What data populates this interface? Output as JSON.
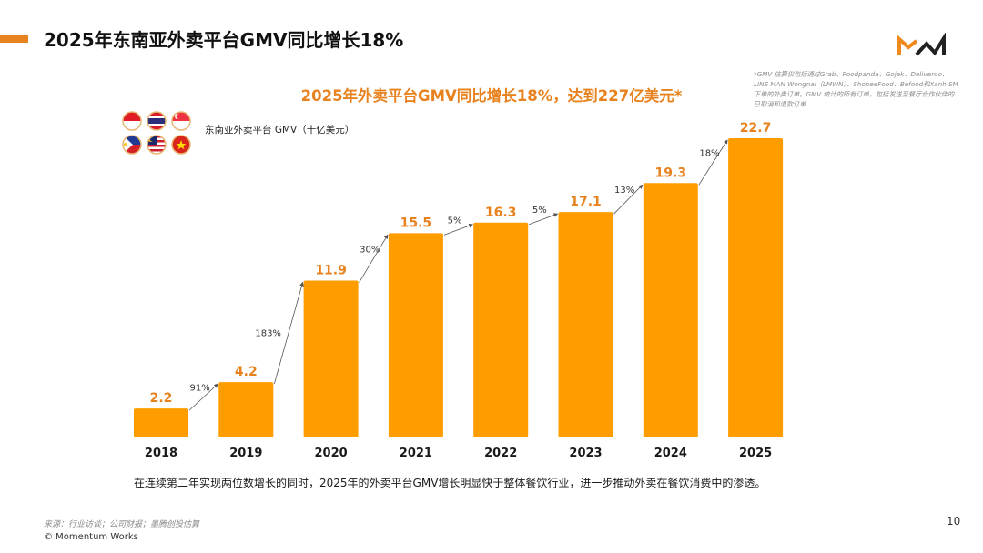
{
  "header": {
    "title": "2025年东南亚外卖平台GMV同比增长18%",
    "accent_color": "#e8821e",
    "logo": "MW"
  },
  "footnote": "*GMV 估算仅包括通过Grab、Foodpanda、Gojek、Deliveroo、LINE MAN Wongnai（LMWN）、ShopeeFood、Befood和Xanh SM下单的外卖订单。GMV 统计的所有订单，包括发送至餐厅合作伙伴的已取消和退款订单",
  "headline": "2025年外卖平台GMV同比增长18%，达到227亿美元*",
  "legend": {
    "label": "东南亚外卖平台 GMV（十亿美元）",
    "flags": [
      "indonesia-flag",
      "thailand-flag",
      "singapore-flag",
      "philippines-flag",
      "malaysia-flag",
      "vietnam-flag"
    ]
  },
  "caption": "在连续第二年实现两位数增长的同时，2025年的外卖平台GMV增长明显快于整体餐饮行业，进一步推动外卖在餐饮消费中的渗透。",
  "footer": {
    "source": "来源：行业访谈；公司财报；墨腾创投估算",
    "copyright": "© Momentum Works",
    "page_number": "10"
  },
  "chart_data": {
    "type": "bar",
    "title": "2025年外卖平台GMV同比增长18%，达到227亿美元*",
    "xlabel": "",
    "ylabel": "东南亚外卖平台 GMV（十亿美元）",
    "categories": [
      "2018",
      "2019",
      "2020",
      "2021",
      "2022",
      "2023",
      "2024",
      "2025"
    ],
    "values": [
      2.2,
      4.2,
      11.9,
      15.5,
      16.3,
      17.1,
      19.3,
      22.7
    ],
    "value_labels": [
      "2.2",
      "4.2",
      "11.9",
      "15.5",
      "16.3",
      "17.1",
      "19.3",
      "22.7"
    ],
    "growth_labels": [
      "91%",
      "183%",
      "30%",
      "5%",
      "5%",
      "13%",
      "18%"
    ],
    "ylim": [
      0,
      22.7
    ],
    "grid": false,
    "legend": "top-left",
    "bar_color": "#ff9c00",
    "value_label_color": "#e8821e"
  }
}
